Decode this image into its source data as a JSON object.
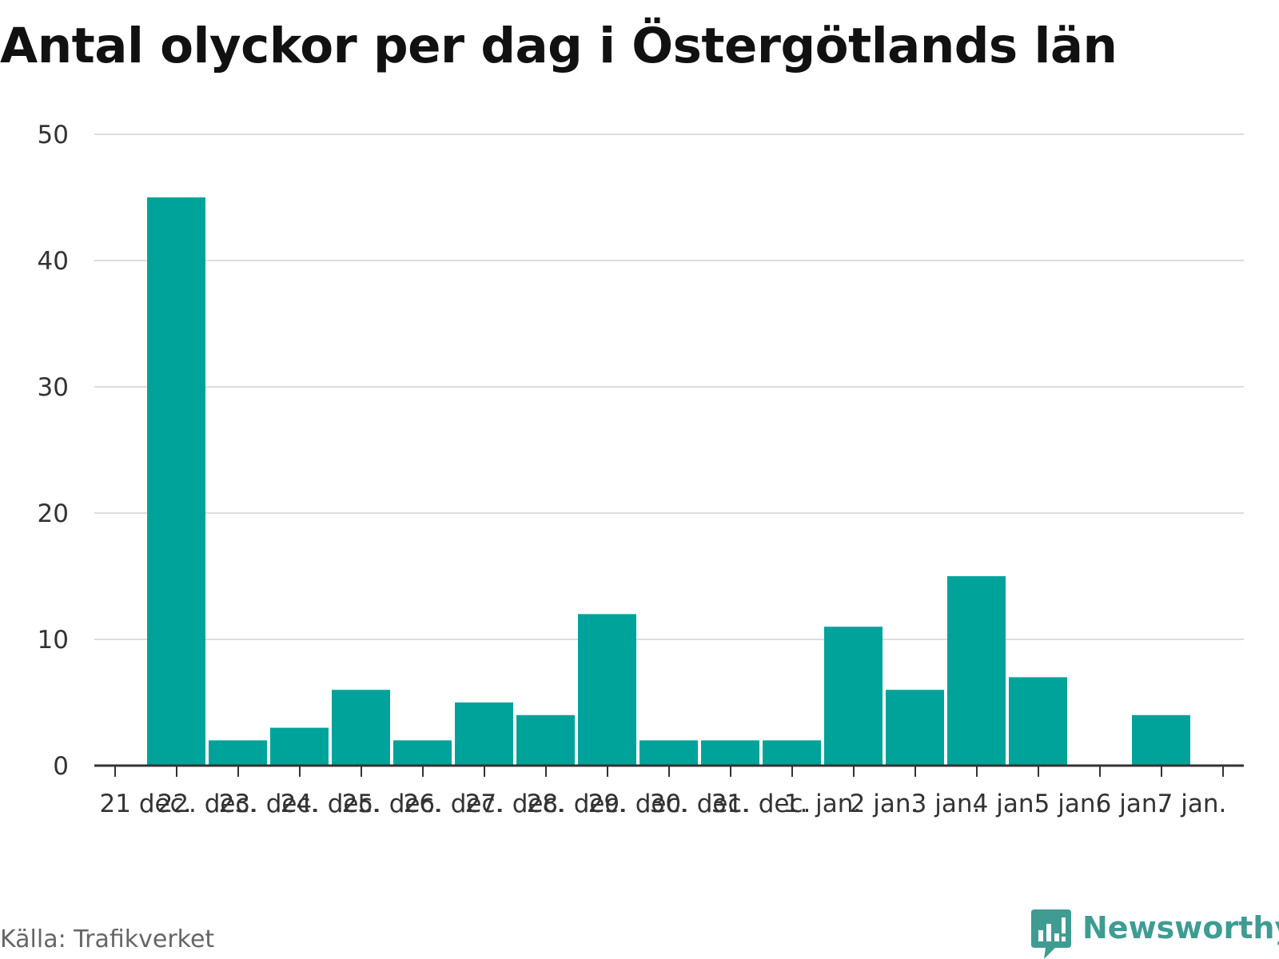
{
  "title": "Antal olyckor per dag i Östergötlands län",
  "source": "Källa: Trafikverket",
  "brand": {
    "name": "Newsworthy",
    "icon": "newsworthy-logo-icon"
  },
  "colors": {
    "bar": "#00a39a",
    "grid": "#dddddd",
    "axis": "#333333",
    "brand": "#3e9c93"
  },
  "chart_data": {
    "type": "bar",
    "title": "Antal olyckor per dag i Östergötlands län",
    "xlabel": "",
    "ylabel": "",
    "ylim": [
      0,
      50
    ],
    "yticks": [
      0,
      10,
      20,
      30,
      40,
      50
    ],
    "grid": true,
    "legend": "none",
    "tick_labels": [
      "21 dec.",
      "22. dec.",
      "23. dec.",
      "24. dec.",
      "25. dec.",
      "26. dec.",
      "27. dec.",
      "28. dec.",
      "29. dec.",
      "30. dec.",
      "31. dec.",
      "1. jan.",
      "2 jan.",
      "3 jan.",
      "4 jan.",
      "5 jan.",
      "6 jan.",
      "7 jan."
    ],
    "categories": [
      "22 dec.",
      "23 dec.",
      "24 dec.",
      "25 dec.",
      "26 dec.",
      "27 dec.",
      "28 dec.",
      "29 dec.",
      "30 dec.",
      "31 dec.",
      "1 jan.",
      "2 jan.",
      "3 jan.",
      "4 jan.",
      "5 jan.",
      "6 jan.",
      "7 jan."
    ],
    "values": [
      45,
      2,
      3,
      6,
      2,
      5,
      4,
      12,
      2,
      2,
      2,
      11,
      6,
      15,
      7,
      0,
      4
    ]
  }
}
